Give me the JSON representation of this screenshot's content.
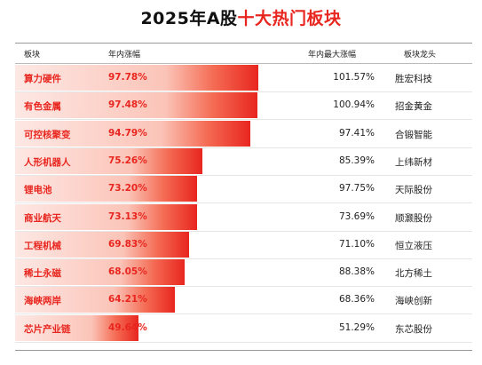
{
  "title": {
    "prefix": "2025年A股",
    "accent": "十大热门板块"
  },
  "columns": {
    "category": "板块",
    "ytd": "年内涨幅",
    "max": "年内最大涨幅",
    "leader": "板块龙头"
  },
  "colors": {
    "accent": "#e8261f",
    "bar_light": "#fde8e4",
    "bar_dark": "#e8261f"
  },
  "chart_data": {
    "type": "table",
    "categories": [
      "算力硬件",
      "有色金属",
      "可控核聚变",
      "人形机器人",
      "锂电池",
      "商业航天",
      "工程机械",
      "稀土永磁",
      "海峡两岸",
      "芯片产业链"
    ],
    "series": [
      {
        "name": "年内涨幅",
        "values": [
          97.78,
          97.48,
          94.79,
          75.26,
          73.2,
          73.13,
          69.83,
          68.05,
          64.21,
          49.64
        ]
      },
      {
        "name": "年内最大涨幅",
        "values": [
          101.57,
          100.94,
          97.41,
          85.39,
          97.75,
          73.69,
          71.1,
          88.38,
          68.36,
          51.29
        ]
      }
    ],
    "rows": [
      {
        "category": "算力硬件",
        "ytd": "97.78%",
        "max": "101.57%",
        "leader": "胜宏科技",
        "ytd_value": 97.78
      },
      {
        "category": "有色金属",
        "ytd": "97.48%",
        "max": "100.94%",
        "leader": "招金黄金",
        "ytd_value": 97.48
      },
      {
        "category": "可控核聚变",
        "ytd": "94.79%",
        "max": "97.41%",
        "leader": "合锻智能",
        "ytd_value": 94.79
      },
      {
        "category": "人形机器人",
        "ytd": "75.26%",
        "max": "85.39%",
        "leader": "上纬新材",
        "ytd_value": 75.26
      },
      {
        "category": "锂电池",
        "ytd": "73.20%",
        "max": "97.75%",
        "leader": "天际股份",
        "ytd_value": 73.2
      },
      {
        "category": "商业航天",
        "ytd": "73.13%",
        "max": "73.69%",
        "leader": "顺灏股份",
        "ytd_value": 73.13
      },
      {
        "category": "工程机械",
        "ytd": "69.83%",
        "max": "71.10%",
        "leader": "恒立液压",
        "ytd_value": 69.83
      },
      {
        "category": "稀土永磁",
        "ytd": "68.05%",
        "max": "88.38%",
        "leader": "北方稀土",
        "ytd_value": 68.05
      },
      {
        "category": "海峡两岸",
        "ytd": "64.21%",
        "max": "68.36%",
        "leader": "海峡创新",
        "ytd_value": 64.21
      },
      {
        "category": "芯片产业链",
        "ytd": "49.64%",
        "max": "51.29%",
        "leader": "东芯股份",
        "ytd_value": 49.64
      }
    ]
  }
}
